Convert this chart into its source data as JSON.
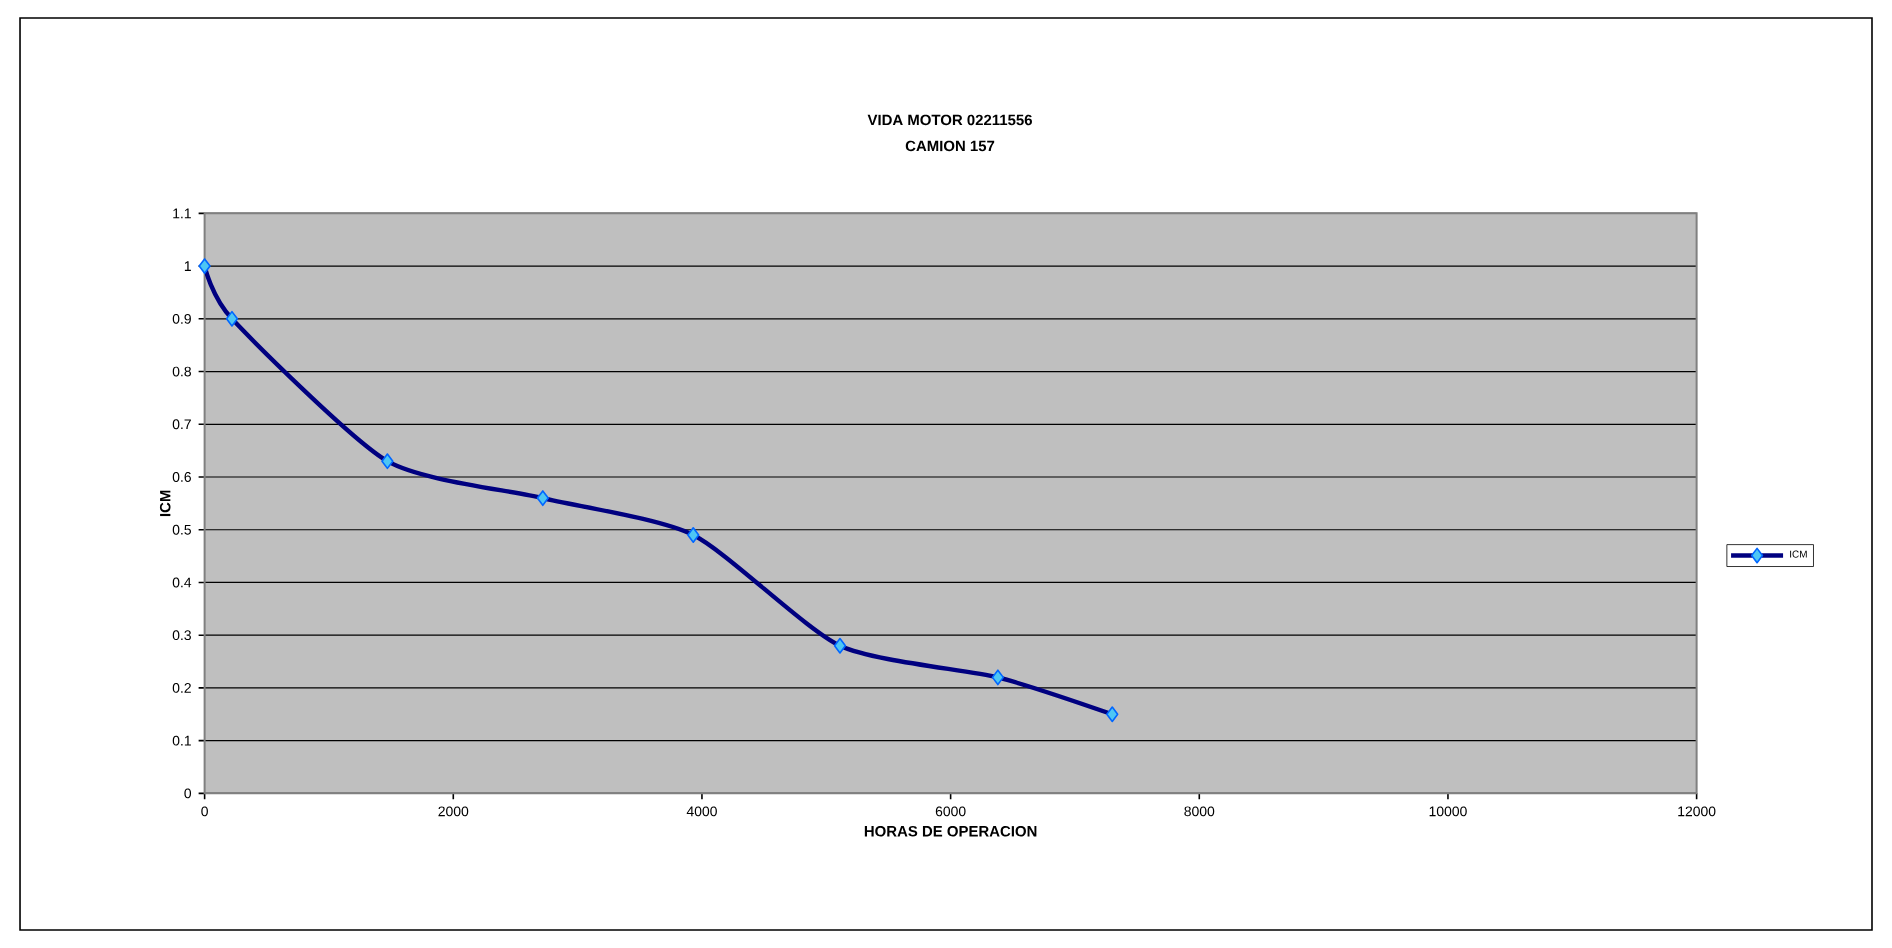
{
  "chart_data": {
    "type": "line",
    "title": "VIDA MOTOR 02211556",
    "subtitle": "CAMION 157",
    "xlabel": "HORAS DE OPERACION",
    "ylabel": "ICM",
    "x": [
      0,
      220,
      1470,
      2720,
      3930,
      5110,
      6380,
      7300
    ],
    "series": [
      {
        "name": "ICM",
        "color": "#000080",
        "values": [
          1.0,
          0.9,
          0.63,
          0.56,
          0.49,
          0.28,
          0.22,
          0.15
        ]
      }
    ],
    "xlim": [
      0,
      12000
    ],
    "xticks": [
      0,
      2000,
      4000,
      6000,
      8000,
      10000,
      12000
    ],
    "ylim": [
      0,
      1.1
    ],
    "yticks": [
      0,
      0.1,
      0.2,
      0.3,
      0.4,
      0.5,
      0.6,
      0.7,
      0.8,
      0.9,
      1,
      1.1
    ],
    "grid": "y",
    "legend": "right",
    "marker": "diamond",
    "line_style": "solid"
  }
}
